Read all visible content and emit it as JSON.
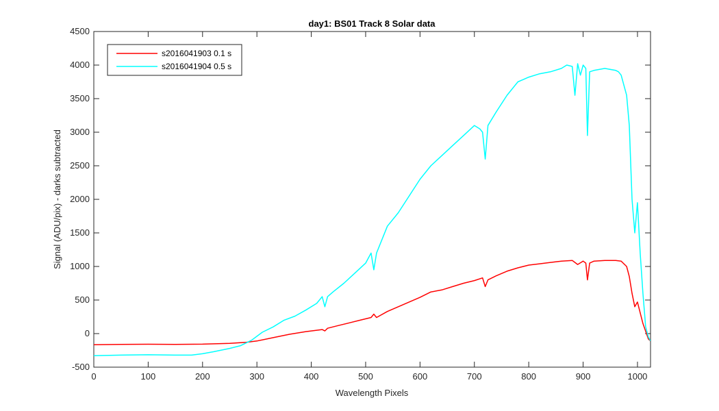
{
  "chart_data": {
    "type": "line",
    "title": "day1: BS01  Track 8 Solar data",
    "xlabel": "Wavelength Pixels",
    "ylabel": "Signal (ADU/pix) - darks subtracted",
    "xlim": [
      0,
      1024
    ],
    "ylim": [
      -500,
      4500
    ],
    "xticks": [
      "0",
      "100",
      "200",
      "300",
      "400",
      "500",
      "600",
      "700",
      "800",
      "900",
      "1000"
    ],
    "yticks": [
      "-500",
      "0",
      "500",
      "1000",
      "1500",
      "2000",
      "2500",
      "3000",
      "3500",
      "4000",
      "4500"
    ],
    "grid": false,
    "legend_position": "top-left",
    "series": [
      {
        "name": "s2016041903 0.1 s",
        "color": "#ff0000",
        "x": [
          0,
          50,
          100,
          150,
          200,
          250,
          280,
          300,
          330,
          360,
          390,
          420,
          425,
          430,
          450,
          470,
          490,
          510,
          515,
          520,
          540,
          560,
          580,
          600,
          620,
          640,
          660,
          680,
          700,
          715,
          720,
          725,
          740,
          760,
          780,
          800,
          820,
          840,
          860,
          880,
          890,
          900,
          905,
          908,
          912,
          920,
          940,
          960,
          970,
          980,
          985,
          990,
          995,
          1000,
          1010,
          1020,
          1024
        ],
        "y": [
          -165,
          -160,
          -158,
          -160,
          -157,
          -145,
          -130,
          -110,
          -60,
          -10,
          30,
          60,
          40,
          80,
          120,
          160,
          200,
          240,
          290,
          240,
          330,
          400,
          470,
          540,
          620,
          650,
          700,
          750,
          790,
          830,
          700,
          800,
          860,
          930,
          980,
          1020,
          1040,
          1060,
          1080,
          1090,
          1030,
          1080,
          1050,
          800,
          1050,
          1080,
          1090,
          1090,
          1080,
          1000,
          850,
          600,
          400,
          470,
          150,
          -80,
          -110
        ]
      },
      {
        "name": "s2016041904 0.5 s",
        "color": "#00ffff",
        "x": [
          0,
          50,
          100,
          150,
          180,
          200,
          220,
          250,
          270,
          290,
          300,
          310,
          330,
          350,
          370,
          390,
          410,
          420,
          425,
          430,
          440,
          460,
          480,
          500,
          510,
          515,
          520,
          540,
          560,
          580,
          600,
          620,
          640,
          660,
          680,
          700,
          710,
          715,
          720,
          725,
          740,
          760,
          780,
          800,
          820,
          840,
          860,
          870,
          880,
          885,
          890,
          895,
          900,
          905,
          908,
          912,
          920,
          940,
          960,
          965,
          970,
          980,
          985,
          990,
          995,
          1000,
          1005,
          1010,
          1015,
          1020,
          1024
        ],
        "y": [
          -330,
          -320,
          -315,
          -320,
          -320,
          -300,
          -270,
          -220,
          -180,
          -100,
          -40,
          20,
          100,
          200,
          260,
          350,
          450,
          550,
          400,
          550,
          620,
          750,
          900,
          1050,
          1200,
          950,
          1200,
          1600,
          1800,
          2050,
          2300,
          2500,
          2650,
          2800,
          2950,
          3100,
          3050,
          3000,
          2600,
          3100,
          3300,
          3550,
          3750,
          3820,
          3870,
          3900,
          3950,
          4000,
          3980,
          3550,
          4020,
          3850,
          4000,
          3950,
          2950,
          3900,
          3920,
          3950,
          3920,
          3900,
          3850,
          3550,
          3100,
          2000,
          1500,
          1950,
          1200,
          600,
          100,
          -50,
          -110
        ]
      }
    ]
  }
}
